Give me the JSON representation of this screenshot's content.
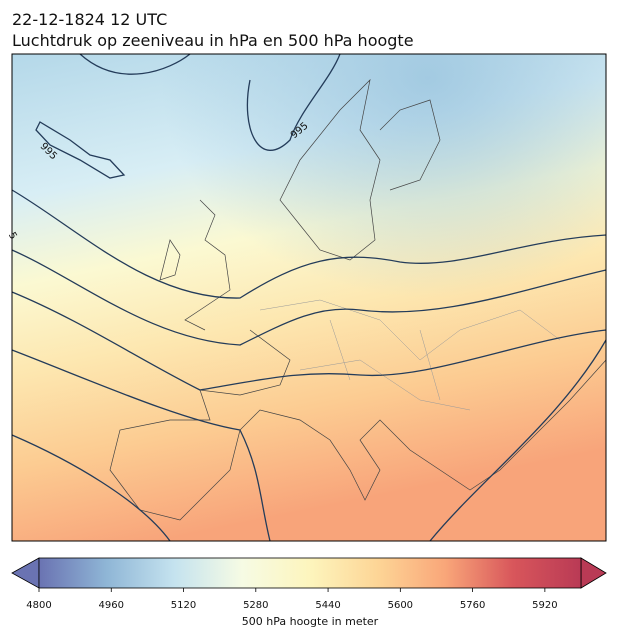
{
  "title": "22-12-1824 12 UTC",
  "subtitle": "Luchtdruk op zeeniveau in hPa en 500 hPa hoogte",
  "contour_labels": [
    "995",
    "995",
    "5"
  ],
  "colorbar": {
    "label": "500 hPa hoogte in meter",
    "lim": [
      4800,
      6000
    ],
    "ticks": [
      4800,
      4960,
      5120,
      5280,
      5440,
      5600,
      5760,
      5920
    ],
    "colors": [
      "#6a73b2",
      "#8fb6d6",
      "#c5e3ef",
      "#f6fbe4",
      "#fdf5bd",
      "#fdd596",
      "#f9a679",
      "#d8565b",
      "#b93a55"
    ]
  }
}
